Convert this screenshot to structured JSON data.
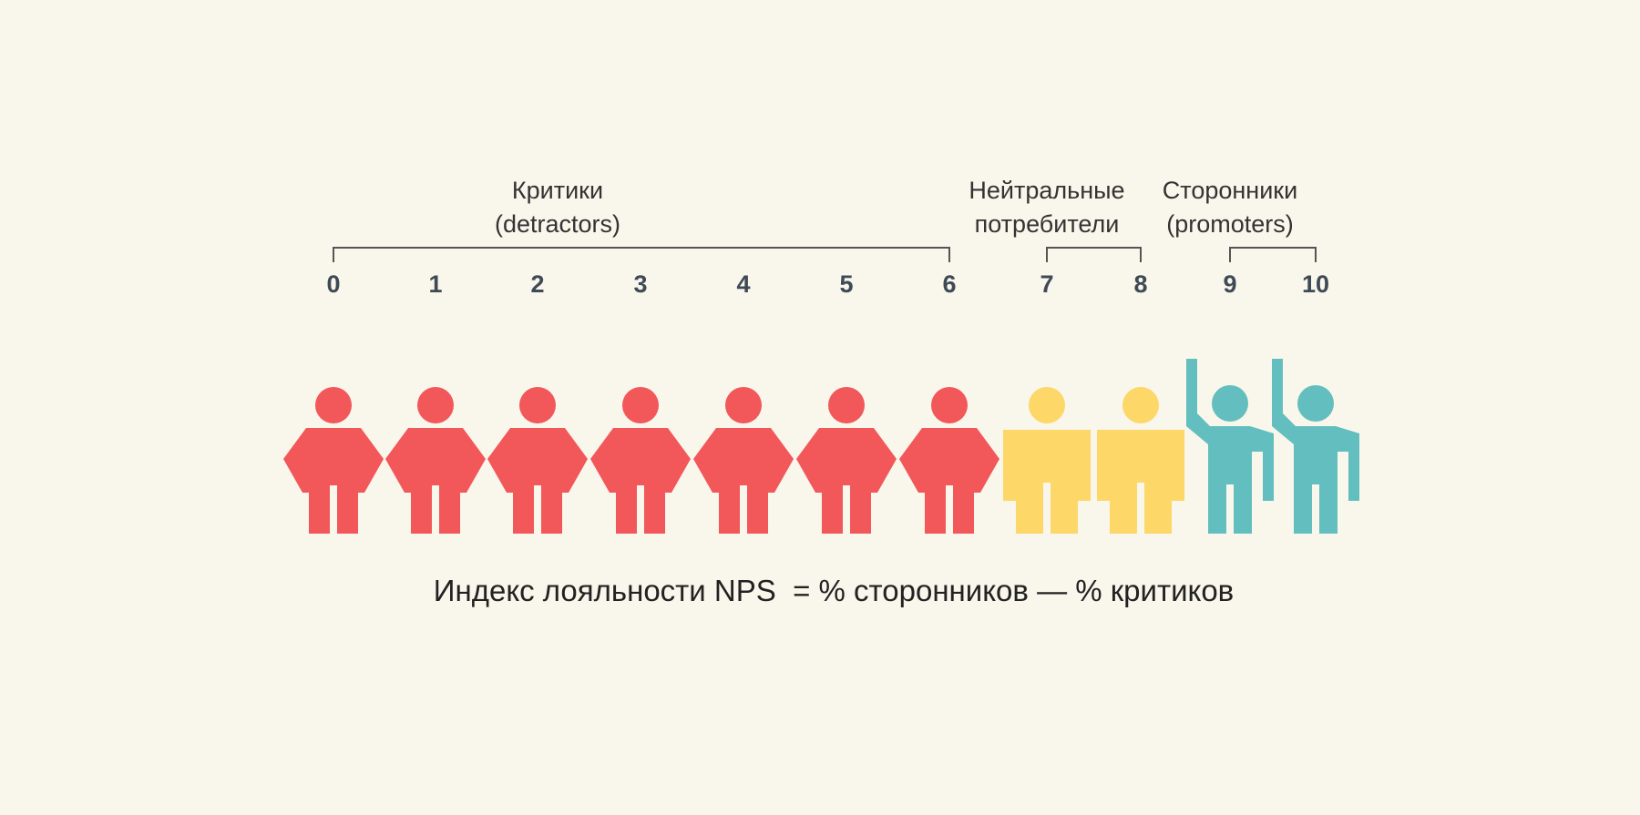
{
  "groups": [
    {
      "id": "detractors",
      "line1": "Критики",
      "line2": "(detractors)",
      "scores": [
        0,
        1,
        2,
        3,
        4,
        5,
        6
      ],
      "color": "#f2575a",
      "pose": "hands-on-hips"
    },
    {
      "id": "passives",
      "line1": "Нейтральные",
      "line2": "потребители",
      "scores": [
        7,
        8
      ],
      "color": "#fdd768",
      "pose": "standing"
    },
    {
      "id": "promoters",
      "line1": "Сторонники",
      "line2": "(promoters)",
      "scores": [
        9,
        10
      ],
      "color": "#63bfbf",
      "pose": "hand-raised"
    }
  ],
  "score_labels": [
    "0",
    "1",
    "2",
    "3",
    "4",
    "5",
    "6",
    "7",
    "8",
    "9",
    "10"
  ],
  "formula": "Индекс лояльности NPS  = % сторонников — % критиков"
}
